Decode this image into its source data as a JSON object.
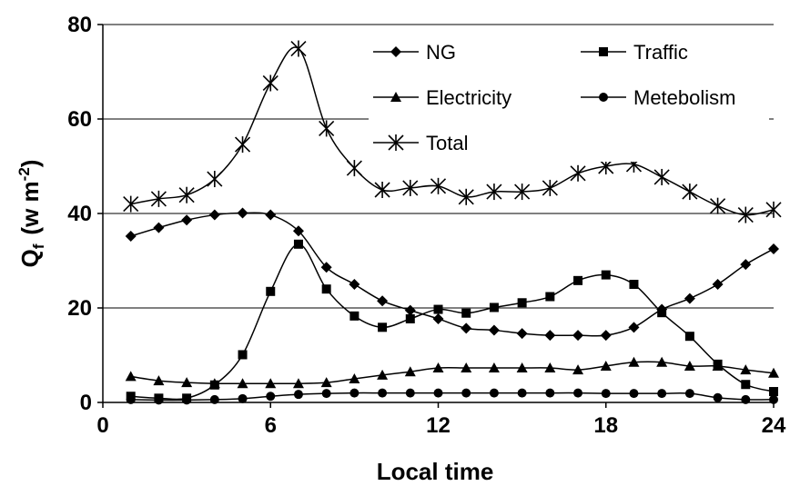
{
  "chart_data": {
    "type": "line",
    "title": "",
    "xlabel": "Local time",
    "ylabel": {
      "main": "Q",
      "sub": "f",
      "unit_open": "(w m",
      "unit_sup": "-2",
      "unit_close": ")"
    },
    "xlim": [
      0,
      24
    ],
    "ylim": [
      0,
      80
    ],
    "xticks": [
      "0",
      "6",
      "12",
      "18",
      "24"
    ],
    "xtick_values": [
      0,
      6,
      12,
      18,
      24
    ],
    "yticks": [
      "0",
      "20",
      "40",
      "60",
      "80"
    ],
    "ytick_values": [
      0,
      20,
      40,
      60,
      80
    ],
    "grid": "horizontal",
    "legend_position": "top-right",
    "x": [
      1,
      2,
      3,
      4,
      5,
      6,
      7,
      8,
      9,
      10,
      11,
      12,
      13,
      14,
      15,
      16,
      17,
      18,
      19,
      20,
      21,
      22,
      23,
      24
    ],
    "series": [
      {
        "name": "NG",
        "marker": "diamond",
        "values": [
          35.2,
          37.0,
          38.6,
          39.7,
          40.1,
          39.7,
          36.3,
          28.6,
          25.0,
          21.5,
          19.5,
          17.7,
          15.7,
          15.3,
          14.6,
          14.2,
          14.2,
          14.2,
          15.9,
          19.7,
          22.0,
          25.0,
          29.2,
          32.5
        ]
      },
      {
        "name": "Traffic",
        "marker": "square",
        "values": [
          1.3,
          0.9,
          0.9,
          3.7,
          10.1,
          23.5,
          33.5,
          24.0,
          18.3,
          15.9,
          17.7,
          19.7,
          18.9,
          20.1,
          21.1,
          22.4,
          25.8,
          27.0,
          25.0,
          19.0,
          14.0,
          8.1,
          3.8,
          2.3
        ]
      },
      {
        "name": "Electricity",
        "marker": "triangle",
        "values": [
          5.5,
          4.6,
          4.2,
          4.0,
          4.0,
          4.0,
          4.0,
          4.2,
          5.0,
          5.8,
          6.5,
          7.3,
          7.3,
          7.3,
          7.3,
          7.3,
          6.9,
          7.7,
          8.5,
          8.5,
          7.7,
          7.7,
          6.9,
          6.2
        ]
      },
      {
        "name": "Metebolism",
        "marker": "circle",
        "values": [
          0.6,
          0.5,
          0.5,
          0.6,
          0.8,
          1.3,
          1.7,
          1.9,
          2.0,
          2.0,
          2.0,
          2.0,
          2.0,
          2.0,
          2.0,
          2.0,
          2.0,
          1.9,
          1.9,
          1.9,
          1.9,
          1.0,
          0.6,
          0.6
        ]
      },
      {
        "name": "Total",
        "marker": "asterisk",
        "values": [
          42.0,
          43.1,
          43.9,
          47.3,
          54.6,
          67.6,
          74.9,
          58.0,
          49.6,
          45.0,
          45.4,
          45.8,
          43.5,
          44.6,
          44.6,
          45.4,
          48.5,
          50.0,
          50.4,
          47.7,
          44.6,
          41.6,
          39.7,
          40.8
        ]
      }
    ]
  }
}
